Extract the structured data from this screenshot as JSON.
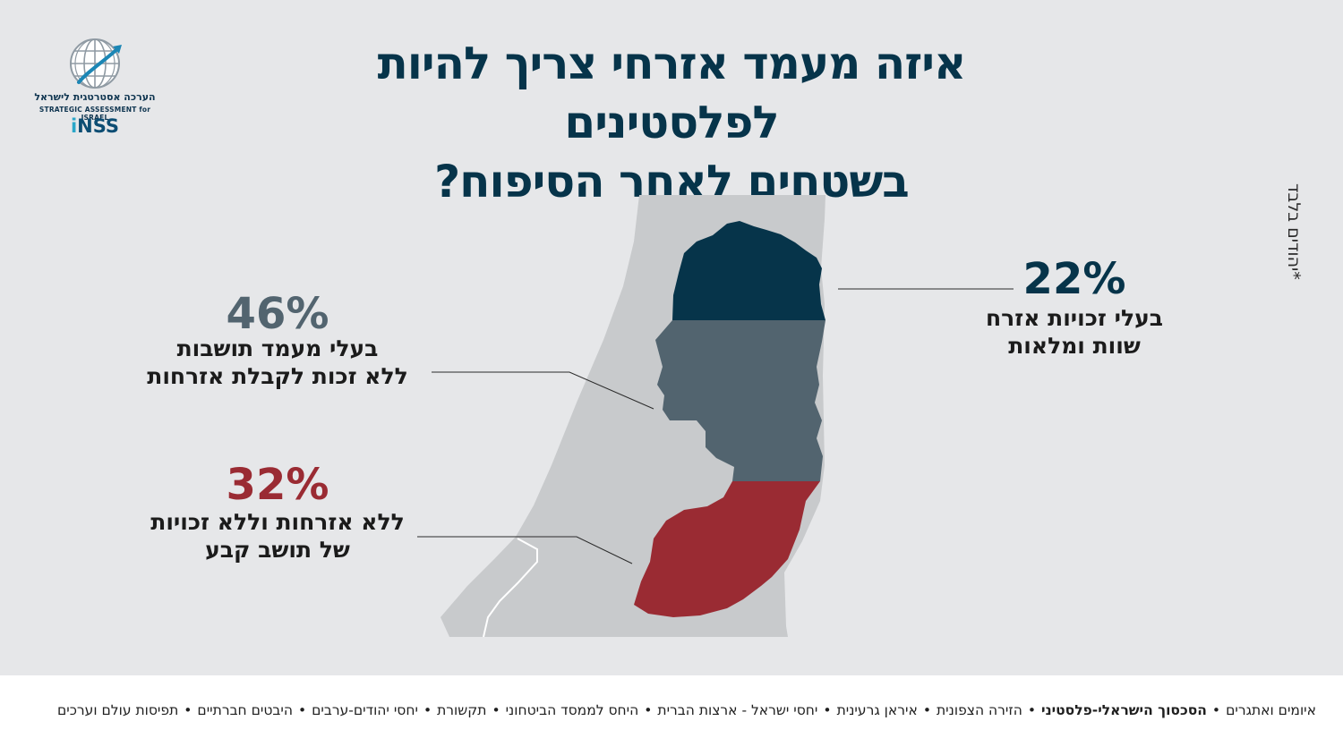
{
  "title_lines": [
    "איזה מעמד אזרחי צריך להיות לפלסטינים",
    "בשטחים לאחר הסיפוח?"
  ],
  "logo": {
    "hebrew": "הערכה אסטרטגית לישראל",
    "english": "STRATEGIC ASSESSMENT for ISRAEL",
    "brand_prefix": "i",
    "brand": "NSS"
  },
  "note": "*יהודים בלבד",
  "colors": {
    "background": "#e6e7e9",
    "map_base": "#c8cacc",
    "full_citizenship": "#06344a",
    "residency": "#52646f",
    "no_citizenship": "#9a2b33",
    "title": "#06344a"
  },
  "chart_data": {
    "type": "pie",
    "title": "איזה מעמד אזרחי צריך להיות לפלסטינים בשטחים לאחר הסיפוח?",
    "unit": "%",
    "segments": [
      {
        "value": 22,
        "value_label": "22%",
        "label_lines": [
          "בעלי זכויות אזרח",
          "שוות ומלאות"
        ],
        "color": "#06344a"
      },
      {
        "value": 46,
        "value_label": "46%",
        "label_lines": [
          "בעלי מעמד תושבות",
          "ללא זכות לקבלת אזרחות"
        ],
        "color": "#52646f"
      },
      {
        "value": 32,
        "value_label": "32%",
        "label_lines": [
          "ללא אזרחות וללא זכויות",
          "של תושב קבע"
        ],
        "color": "#9a2b33"
      }
    ]
  },
  "footer": {
    "topics": [
      {
        "label": "איומים ואתגרים",
        "active": false
      },
      {
        "label": "הסכסוך הישראלי-פלסטיני",
        "active": true
      },
      {
        "label": "הזירה הצפונית",
        "active": false
      },
      {
        "label": "איראן גרעינית",
        "active": false
      },
      {
        "label": "יחסי ישראל - ארצות הברית",
        "active": false
      },
      {
        "label": "היחס לממסד הביטחוני",
        "active": false
      },
      {
        "label": "תקשורת",
        "active": false
      },
      {
        "label": "יחסי יהודים-ערבים",
        "active": false
      },
      {
        "label": "היבטים חברתיים",
        "active": false
      },
      {
        "label": "תפיסות עולם וערכים",
        "active": false
      }
    ]
  }
}
